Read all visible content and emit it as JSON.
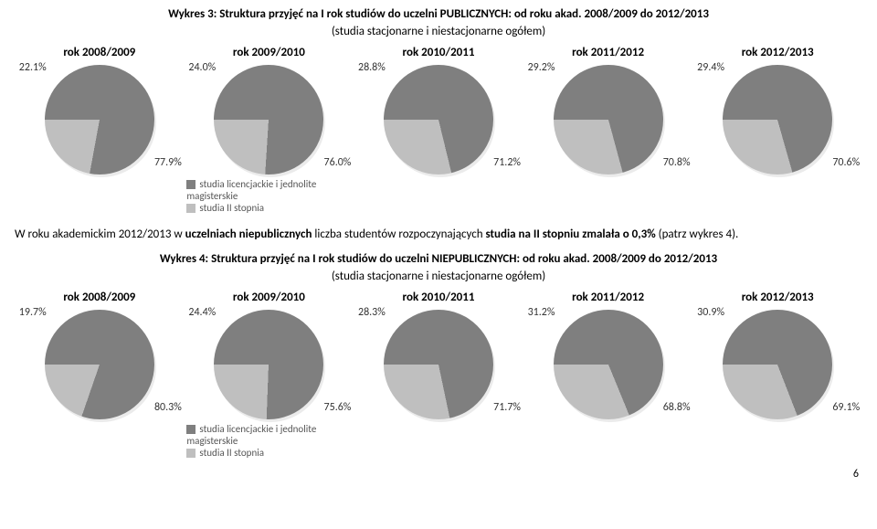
{
  "colors": {
    "slice_main": "#7f7f7f",
    "slice_secondary": "#bfbfbf",
    "bg": "#ffffff"
  },
  "legend": {
    "item1": "studia licencjackie i jednolite magisterskie",
    "item2": "studia II stopnia"
  },
  "section1": {
    "title_main": "Wykres 3: Struktura przyjęć na I rok studiów do uczelni PUBLICZNYCH: od roku akad. 2008/2009 do 2012/2013",
    "title_sub": "(studia stacjonarne i niestacjonarne ogółem)",
    "charts": [
      {
        "year": "rok 2008/2009",
        "main": 77.9,
        "sec": 22.1,
        "main_label": "77.9%",
        "sec_label": "22.1%"
      },
      {
        "year": "rok 2009/2010",
        "main": 76.0,
        "sec": 24.0,
        "main_label": "76.0%",
        "sec_label": "24.0%"
      },
      {
        "year": "rok 2010/2011",
        "main": 71.2,
        "sec": 28.8,
        "main_label": "71.2%",
        "sec_label": "28.8%"
      },
      {
        "year": "rok 2011/2012",
        "main": 70.8,
        "sec": 29.2,
        "main_label": "70.8%",
        "sec_label": "29.2%"
      },
      {
        "year": "rok 2012/2013",
        "main": 70.6,
        "sec": 29.4,
        "main_label": "70.6%",
        "sec_label": "29.4%"
      }
    ]
  },
  "body": {
    "pre": "W roku akademickim 2012/2013 w ",
    "em1": "uczelniach niepublicznych ",
    "mid": "liczba studentów rozpoczynających ",
    "em2": "studia na II stopniu  zmalała o  0,3% ",
    "post": "(patrz wykres 4)."
  },
  "section2": {
    "title_main": "Wykres 4: Struktura przyjęć na I rok studiów do uczelni NIEPUBLICZNYCH: od roku akad. 2008/2009 do 2012/2013",
    "title_sub": "(studia stacjonarne i niestacjonarne ogółem)",
    "charts": [
      {
        "year": "rok 2008/2009",
        "main": 80.3,
        "sec": 19.7,
        "main_label": "80.3%",
        "sec_label": "19.7%"
      },
      {
        "year": "rok 2009/2010",
        "main": 75.6,
        "sec": 24.4,
        "main_label": "75.6%",
        "sec_label": "24.4%"
      },
      {
        "year": "rok 2010/2011",
        "main": 71.7,
        "sec": 28.3,
        "main_label": "71.7%",
        "sec_label": "28.3%"
      },
      {
        "year": "rok 2011/2012",
        "main": 68.8,
        "sec": 31.2,
        "main_label": "68.8%",
        "sec_label": "31.2%"
      },
      {
        "year": "rok 2012/2013",
        "main": 69.1,
        "sec": 30.9,
        "main_label": "69.1%",
        "sec_label": "30.9%"
      }
    ]
  },
  "pagenum": "6"
}
